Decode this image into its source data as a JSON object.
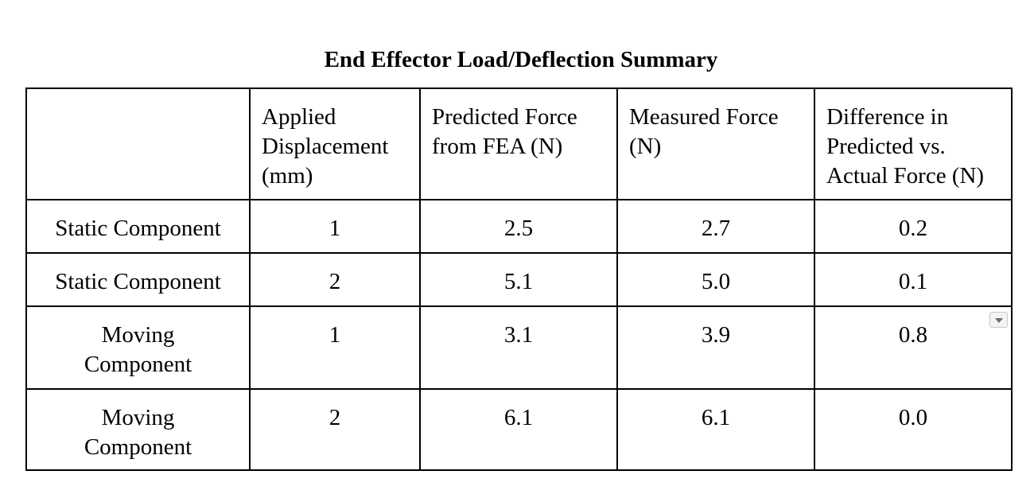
{
  "title": "End Effector Load/Deflection Summary",
  "table": {
    "headers": [
      "",
      "Applied Displacement (mm)",
      "Predicted Force from FEA (N)",
      "Measured Force (N)",
      "Difference in Predicted vs. Actual Force (N)"
    ],
    "rows": [
      {
        "label": "Static Component",
        "values": [
          "1",
          "2.5",
          "2.7",
          "0.2"
        ]
      },
      {
        "label": "Static Component",
        "values": [
          "2",
          "5.1",
          "5.0",
          "0.1"
        ]
      },
      {
        "label": "Moving Component",
        "values": [
          "1",
          "3.1",
          "3.9",
          "0.8"
        ]
      },
      {
        "label": "Moving Component",
        "values": [
          "2",
          "6.1",
          "6.1",
          "0.0"
        ]
      }
    ]
  },
  "icons": {
    "cell_menu": "chevron-down-icon"
  }
}
